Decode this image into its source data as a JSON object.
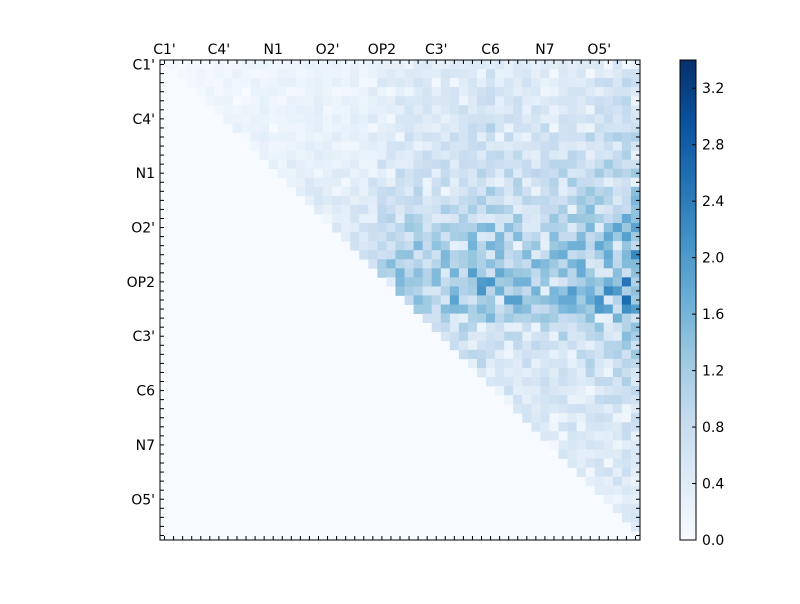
{
  "chart_data": {
    "type": "heatmap",
    "grid": false,
    "matrix_size": 53,
    "colormap": "Blues",
    "colormap_stops": [
      "#f7fbff",
      "#deebf7",
      "#c6dbef",
      "#9ecae1",
      "#6baed6",
      "#4292c6",
      "#2171b5",
      "#08519c",
      "#08306b"
    ],
    "x_tick_labels": [
      "C1'",
      "C4'",
      "N1",
      "O2'",
      "OP2",
      "C3'",
      "C6",
      "N7",
      "O5'"
    ],
    "y_tick_labels": [
      "C1'",
      "C4'",
      "N1",
      "O2'",
      "OP2",
      "C3'",
      "C6",
      "N7",
      "O5'"
    ],
    "tick_label_index_positions": [
      0,
      6,
      12,
      18,
      24,
      30,
      36,
      42,
      48
    ],
    "x_ticks_position": "top",
    "value_range": [
      0.0,
      3.4
    ],
    "colorbar": {
      "ticks": [
        0.0,
        0.4,
        0.8,
        1.2,
        1.6,
        2.0,
        2.4,
        2.8,
        3.2
      ],
      "tick_labels": [
        "0.0",
        "0.4",
        "0.8",
        "1.2",
        "1.6",
        "2.0",
        "2.4",
        "2.8",
        "3.2"
      ],
      "range": [
        0.0,
        3.4
      ],
      "position": "right"
    },
    "upper_triangle_row_profile": [
      0.1,
      0.15,
      0.18,
      0.15,
      0.2,
      0.22,
      0.2,
      0.25,
      0.28,
      0.25,
      0.3,
      0.35,
      0.38,
      0.42,
      0.45,
      0.5,
      0.55,
      0.6,
      0.7,
      0.8,
      0.9,
      1.0,
      1.05,
      1.1,
      1.2,
      1.25,
      1.3,
      1.1,
      0.6,
      0.45,
      0.4,
      0.35,
      0.3,
      0.3,
      0.25,
      0.22,
      0.2,
      0.2,
      0.18,
      0.15,
      0.15,
      0.12,
      0.1,
      0.12,
      0.15,
      0.12,
      0.1,
      0.1,
      0.1,
      0.08,
      0.08,
      0.06,
      0.05
    ],
    "upper_triangle_col_profile": [
      0.1,
      0.1,
      0.12,
      0.1,
      0.12,
      0.15,
      0.12,
      0.15,
      0.18,
      0.15,
      0.2,
      0.22,
      0.2,
      0.25,
      0.28,
      0.25,
      0.3,
      0.3,
      0.28,
      0.3,
      0.35,
      0.4,
      0.45,
      0.6,
      0.8,
      1.0,
      1.1,
      1.2,
      1.3,
      1.15,
      1.35,
      1.25,
      1.3,
      1.4,
      1.6,
      1.75,
      2.2,
      1.4,
      1.5,
      1.45,
      1.3,
      1.25,
      1.55,
      1.4,
      1.6,
      1.75,
      1.6,
      1.9,
      2.0,
      2.1,
      2.4,
      2.7,
      2.6
    ]
  }
}
